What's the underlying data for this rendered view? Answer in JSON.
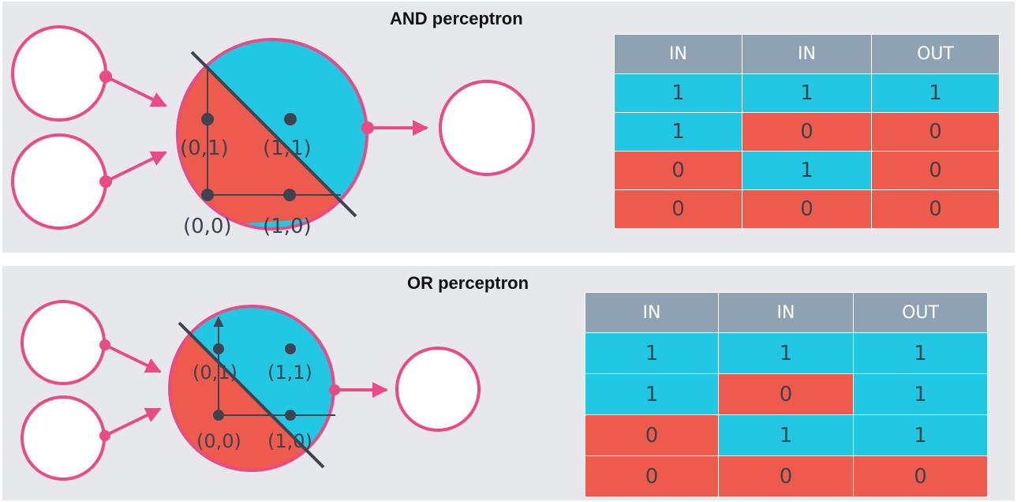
{
  "colors": {
    "panel_bg": "#e6e8ec",
    "one_fill": "#22c7e3",
    "zero_fill": "#ee5a4b",
    "header_fill": "#8fa2b3",
    "node_stroke": "#ea4a86",
    "line": "#3e4350"
  },
  "and": {
    "title": "AND perceptron",
    "points": [
      "(0,1)",
      "(1,1)",
      "(0,0)",
      "(1,0)"
    ],
    "table": {
      "headers": [
        "IN",
        "IN",
        "OUT"
      ],
      "rows": [
        [
          "1",
          "1",
          "1"
        ],
        [
          "1",
          "0",
          "0"
        ],
        [
          "0",
          "1",
          "0"
        ],
        [
          "0",
          "0",
          "0"
        ]
      ]
    }
  },
  "or": {
    "title": "OR perceptron",
    "points": [
      "(0,1)",
      "(1,1)",
      "(0,0)",
      "(1,0)"
    ],
    "table": {
      "headers": [
        "IN",
        "IN",
        "OUT"
      ],
      "rows": [
        [
          "1",
          "1",
          "1"
        ],
        [
          "1",
          "0",
          "1"
        ],
        [
          "0",
          "1",
          "1"
        ],
        [
          "0",
          "0",
          "0"
        ]
      ]
    }
  }
}
